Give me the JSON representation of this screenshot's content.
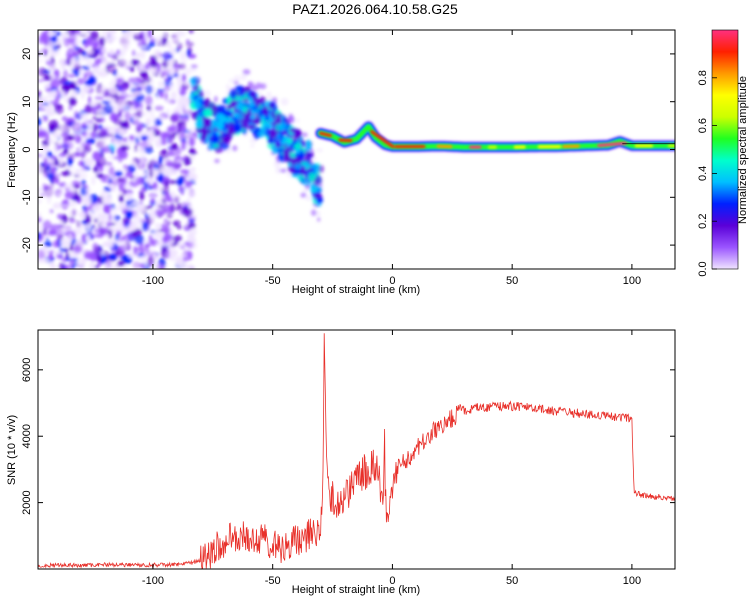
{
  "title": "PAZ1.2026.064.10.58.G25",
  "chart_data": [
    {
      "type": "heatmap",
      "xlabel": "Height of straight line (km)",
      "ylabel": "Frequency (Hz)",
      "xlim": [
        -148,
        118
      ],
      "ylim": [
        -25,
        25
      ],
      "xticks": [
        -100,
        -50,
        0,
        50,
        100
      ],
      "yticks": [
        -20,
        -10,
        0,
        10,
        20
      ],
      "grid": false,
      "colorbar": {
        "label": "Normalized spectral amplitude",
        "range": [
          0,
          1
        ],
        "ticks": [
          0.0,
          0.2,
          0.4,
          0.6,
          0.8
        ],
        "colors": [
          "#f0e4ff",
          "#9a55ff",
          "#5a00d8",
          "#0020ff",
          "#00bfff",
          "#00ffcc",
          "#20ff20",
          "#ccff00",
          "#ffff00",
          "#ff9900",
          "#ff2000",
          "#ff3080"
        ]
      },
      "features": {
        "noise_region_x": [
          -148,
          -83
        ],
        "scatter_region_x": [
          -83,
          -30
        ],
        "tone_line_x": [
          -30,
          118
        ],
        "tone_line_frequency": [
          [
            -30,
            3.4
          ],
          [
            -25,
            2.8
          ],
          [
            -20,
            1.5
          ],
          [
            -15,
            2.2
          ],
          [
            -10,
            4.8
          ],
          [
            -7,
            2.5
          ],
          [
            -3,
            1.0
          ],
          [
            0,
            0.6
          ],
          [
            10,
            0.6
          ],
          [
            20,
            0.7
          ],
          [
            30,
            0.5
          ],
          [
            50,
            0.5
          ],
          [
            70,
            0.6
          ],
          [
            90,
            0.9
          ],
          [
            95,
            1.7
          ],
          [
            100,
            0.8
          ],
          [
            118,
            0.8
          ]
        ],
        "scatter_trend": [
          [
            -82,
            10
          ],
          [
            -78,
            6
          ],
          [
            -72,
            4
          ],
          [
            -66,
            8
          ],
          [
            -60,
            9
          ],
          [
            -55,
            6
          ],
          [
            -50,
            5
          ],
          [
            -45,
            2
          ],
          [
            -40,
            -1
          ],
          [
            -35,
            -3
          ],
          [
            -31,
            -8
          ]
        ]
      }
    },
    {
      "type": "line",
      "xlabel": "Height of straight line (km)",
      "ylabel": "SNR (10 * v/v)",
      "xlim": [
        -148,
        118
      ],
      "ylim": [
        0,
        7200
      ],
      "xticks": [
        -100,
        -50,
        0,
        50,
        100
      ],
      "yticks": [
        2000,
        4000,
        6000
      ],
      "grid": false,
      "series": [
        {
          "color": "#e8302a",
          "x": [
            -148,
            -140,
            -130,
            -120,
            -110,
            -100,
            -90,
            -85,
            -80,
            -77,
            -74,
            -71,
            -68,
            -65,
            -62,
            -59,
            -56,
            -53,
            -50,
            -47,
            -44,
            -41,
            -38,
            -35,
            -32,
            -30,
            -29,
            -28.5,
            -28,
            -27.5,
            -27,
            -26,
            -25,
            -24,
            -22,
            -20,
            -18,
            -16,
            -14,
            -12,
            -10,
            -8,
            -6,
            -5,
            -4,
            -3.2,
            -3,
            -2.5,
            -2,
            -1,
            0,
            2,
            4,
            6,
            8,
            10,
            12,
            15,
            18,
            21,
            24,
            27,
            30,
            35,
            40,
            45,
            50,
            55,
            60,
            65,
            70,
            75,
            80,
            85,
            90,
            95,
            99,
            100,
            100.5,
            101,
            103,
            106,
            110,
            114,
            118
          ],
          "y": [
            100,
            120,
            110,
            130,
            120,
            120,
            140,
            170,
            250,
            400,
            600,
            800,
            900,
            950,
            1000,
            950,
            900,
            850,
            700,
            650,
            700,
            800,
            900,
            1000,
            1100,
            1200,
            2800,
            7100,
            5200,
            3500,
            2600,
            2200,
            2100,
            2000,
            2100,
            2300,
            2400,
            2500,
            2700,
            2900,
            3000,
            3100,
            3000,
            2500,
            1500,
            4400,
            2200,
            1500,
            1300,
            2000,
            2500,
            3000,
            3200,
            3300,
            3400,
            3600,
            3800,
            4000,
            4200,
            4350,
            4500,
            4650,
            4750,
            4850,
            4880,
            4900,
            4900,
            4880,
            4850,
            4780,
            4750,
            4700,
            4680,
            4650,
            4600,
            4580,
            4560,
            4500,
            3200,
            2300,
            2250,
            2200,
            2180,
            2150,
            2130
          ]
        }
      ]
    }
  ]
}
